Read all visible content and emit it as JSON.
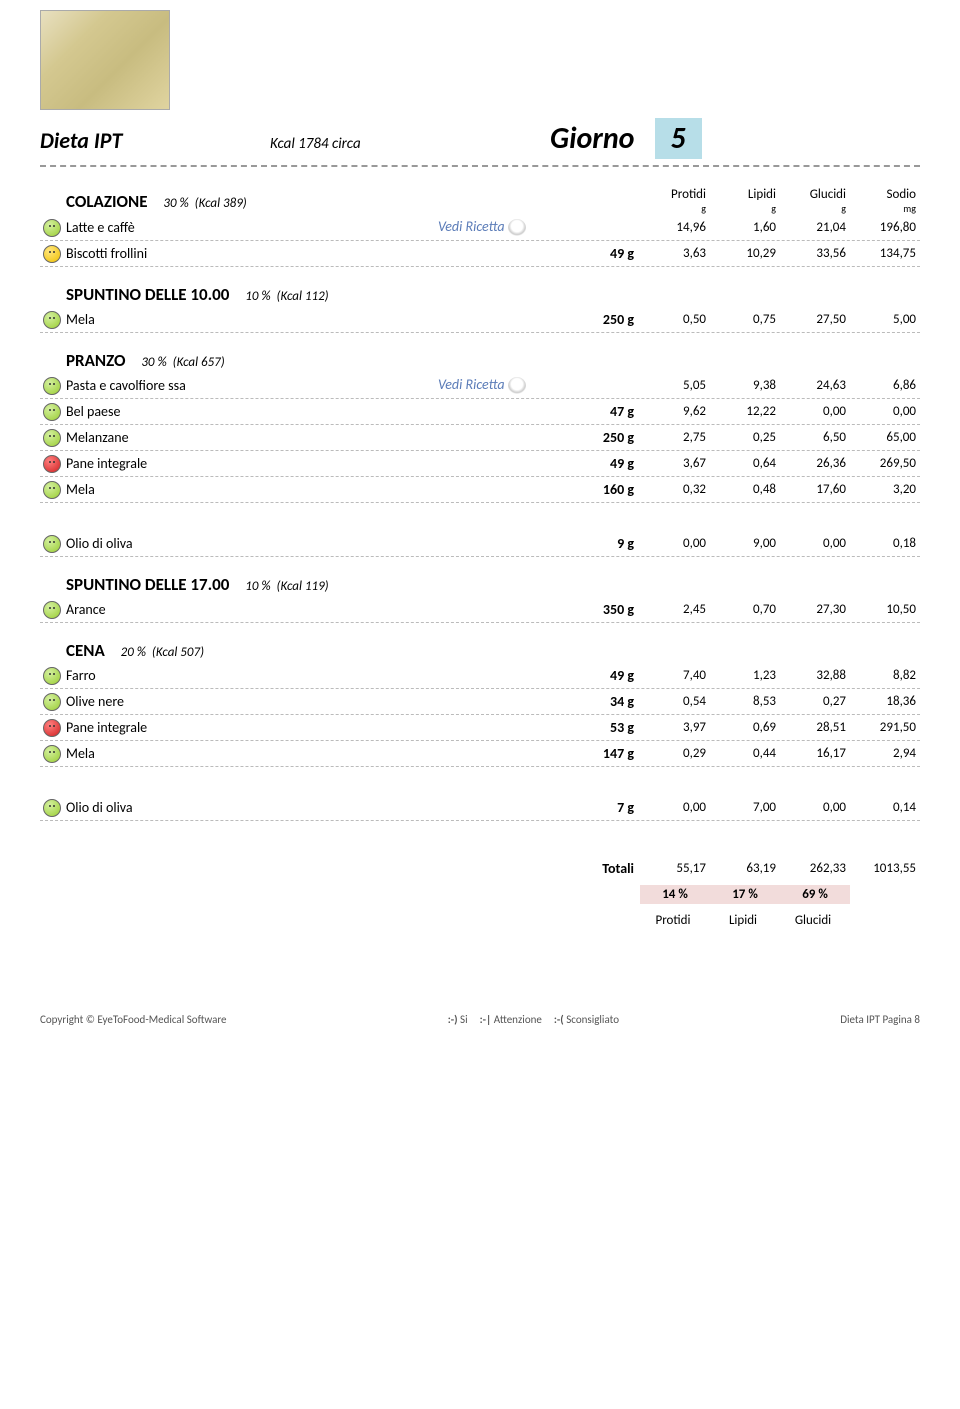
{
  "header": {
    "diet_name": "Dieta IPT",
    "kcal_text": "Kcal  1784 circa",
    "giorno_label": "Giorno",
    "day_number": "5"
  },
  "nutrient_headers": [
    {
      "top": "Protidi",
      "bottom": "g"
    },
    {
      "top": "Lipidi",
      "bottom": "g"
    },
    {
      "top": "Glucidi",
      "bottom": "g"
    },
    {
      "top": "Sodio",
      "bottom": "mg"
    }
  ],
  "recipe_link_text": "Vedi Ricetta",
  "sections": [
    {
      "name": "COLAZIONE",
      "pct": "30 %",
      "kcal": "(Kcal 389)",
      "show_headers": true,
      "items": [
        {
          "face": "green",
          "name": "Latte e caffè",
          "link": true,
          "amount": "",
          "v": [
            "14,96",
            "1,60",
            "21,04",
            "196,80"
          ]
        },
        {
          "face": "yellow",
          "name": "Biscotti frollini",
          "amount": "49 g",
          "v": [
            "3,63",
            "10,29",
            "33,56",
            "134,75"
          ]
        }
      ]
    },
    {
      "name": "SPUNTINO DELLE 10.00",
      "pct": "10 %",
      "kcal": "(Kcal 112)",
      "items": [
        {
          "face": "green",
          "name": "Mela",
          "amount": "250 g",
          "v": [
            "0,50",
            "0,75",
            "27,50",
            "5,00"
          ]
        }
      ]
    },
    {
      "name": "PRANZO",
      "pct": "30 %",
      "kcal": "(Kcal 657)",
      "items": [
        {
          "face": "green",
          "name": "Pasta e cavolfiore ssa",
          "link": true,
          "amount": "",
          "v": [
            "5,05",
            "9,38",
            "24,63",
            "6,86"
          ]
        },
        {
          "face": "green",
          "name": "Bel paese",
          "amount": "47 g",
          "v": [
            "9,62",
            "12,22",
            "0,00",
            "0,00"
          ]
        },
        {
          "face": "green",
          "name": "Melanzane",
          "amount": "250 g",
          "v": [
            "2,75",
            "0,25",
            "6,50",
            "65,00"
          ]
        },
        {
          "face": "red",
          "name": "Pane integrale",
          "amount": "49 g",
          "v": [
            "3,67",
            "0,64",
            "26,36",
            "269,50"
          ]
        },
        {
          "face": "green",
          "name": "Mela",
          "amount": "160 g",
          "v": [
            "0,32",
            "0,48",
            "17,60",
            "3,20"
          ]
        }
      ],
      "extra_after": [
        {
          "face": "green",
          "name": "Olio di oliva",
          "amount": "9 g",
          "v": [
            "0,00",
            "9,00",
            "0,00",
            "0,18"
          ]
        }
      ]
    },
    {
      "name": "SPUNTINO DELLE 17.00",
      "pct": "10 %",
      "kcal": "(Kcal 119)",
      "items": [
        {
          "face": "green",
          "name": "Arance",
          "amount": "350 g",
          "v": [
            "2,45",
            "0,70",
            "27,30",
            "10,50"
          ]
        }
      ]
    },
    {
      "name": "CENA",
      "pct": "20 %",
      "kcal": "(Kcal 507)",
      "items": [
        {
          "face": "green",
          "name": "Farro",
          "amount": "49 g",
          "v": [
            "7,40",
            "1,23",
            "32,88",
            "8,82"
          ]
        },
        {
          "face": "green",
          "name": "Olive nere",
          "amount": "34 g",
          "v": [
            "0,54",
            "8,53",
            "0,27",
            "18,36"
          ]
        },
        {
          "face": "red",
          "name": "Pane integrale",
          "amount": "53 g",
          "v": [
            "3,97",
            "0,69",
            "28,51",
            "291,50"
          ]
        },
        {
          "face": "green",
          "name": "Mela",
          "amount": "147 g",
          "v": [
            "0,29",
            "0,44",
            "16,17",
            "2,94"
          ]
        }
      ],
      "extra_after": [
        {
          "face": "green",
          "name": "Olio di oliva",
          "amount": "7 g",
          "v": [
            "0,00",
            "7,00",
            "0,00",
            "0,14"
          ]
        }
      ]
    }
  ],
  "totals": {
    "label": "Totali",
    "values": [
      "55,17",
      "63,19",
      "262,33",
      "1013,55"
    ],
    "percents": [
      "14 %",
      "17 %",
      "69 %"
    ],
    "labels": [
      "Protidi",
      "Lipidi",
      "Glucidi"
    ]
  },
  "footer": {
    "copyright": "Copyright © EyeToFood-Medical Software",
    "legend": [
      {
        "sym": ":-)",
        "txt": "Si"
      },
      {
        "sym": ":-|",
        "txt": "Attenzione"
      },
      {
        "sym": ":-(",
        "txt": "Sconsigliato"
      }
    ],
    "right": "Dieta IPT    Pagina 8"
  }
}
